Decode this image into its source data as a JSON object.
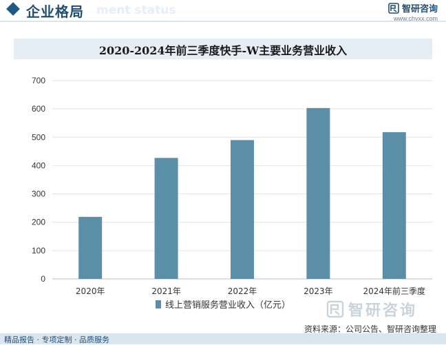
{
  "header": {
    "section_title": "企业格局",
    "ghost_text": "ment status",
    "brand_name": "智研咨询",
    "brand_url": "www.chyxx.com"
  },
  "chart_data": {
    "type": "bar",
    "title": "2020-2024年前三季度快手-W主要业务营业收入",
    "categories": [
      "2020年",
      "2021年",
      "2022年",
      "2023年",
      "2024年前三季度"
    ],
    "series": [
      {
        "name": "线上营销服务营业收入（亿元）",
        "values": [
          219,
          427,
          490,
          603,
          518
        ],
        "color": "#5b8fa8"
      }
    ],
    "ylim": [
      0,
      700
    ],
    "yticks": [
      0,
      100,
      200,
      300,
      400,
      500,
      600,
      700
    ],
    "grid": true,
    "legend": "bottom"
  },
  "watermark": {
    "brand_name": "智研咨询"
  },
  "source": "资料来源：公司公告、智研咨询整理",
  "footer": {
    "text": "精品报告 · 专项定制 · 品质服务"
  }
}
